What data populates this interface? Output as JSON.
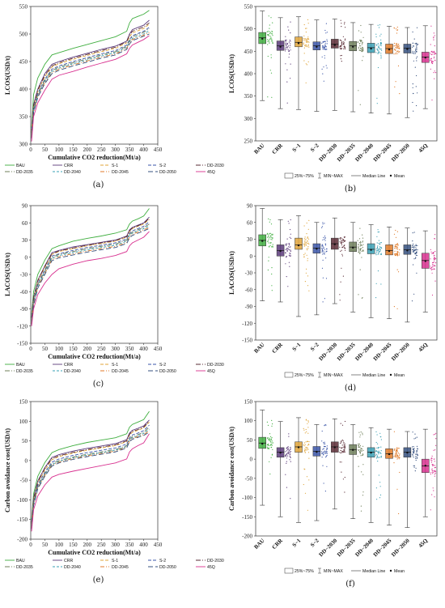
{
  "colors": {
    "BAU": "#3fae3f",
    "CRR": "#5b3a7a",
    "S-1": "#e0a53a",
    "S-2": "#3a55a8",
    "DD-2030": "#5a2b35",
    "DD-2035": "#6f7f5a",
    "DD-2040": "#3aa0b5",
    "DD-2045": "#e07a28",
    "DD-2050": "#35507f",
    "45Q": "#d8308f"
  },
  "chart_data": [
    {
      "id": "a",
      "panel_label": "(a)",
      "type": "line",
      "xlabel": "Cumulative CO2 reduction(Mt/a)",
      "ylabel": "LCOS(USD/t)",
      "xlim": [
        0,
        450
      ],
      "ylim": [
        300,
        550
      ],
      "xticks": [
        0,
        50,
        100,
        150,
        200,
        250,
        300,
        350,
        400,
        450
      ],
      "yticks": [
        300,
        350,
        400,
        450,
        500,
        550
      ],
      "x": [
        3,
        10,
        25,
        50,
        75,
        100,
        150,
        200,
        250,
        300,
        340,
        350,
        360,
        380,
        400,
        420
      ],
      "series": [
        {
          "name": "BAU",
          "values": [
            330,
            390,
            420,
            445,
            462,
            466,
            474,
            481,
            488,
            495,
            505,
            520,
            528,
            532,
            536,
            543
          ]
        },
        {
          "name": "CRR",
          "values": [
            325,
            372,
            400,
            428,
            445,
            450,
            458,
            465,
            472,
            478,
            487,
            500,
            508,
            512,
            516,
            525
          ]
        },
        {
          "name": "S-1",
          "values": [
            322,
            368,
            396,
            422,
            440,
            446,
            454,
            461,
            468,
            474,
            484,
            495,
            502,
            506,
            510,
            518
          ]
        },
        {
          "name": "S-2",
          "values": [
            318,
            364,
            392,
            418,
            436,
            442,
            450,
            457,
            464,
            470,
            480,
            490,
            497,
            501,
            505,
            512
          ]
        },
        {
          "name": "DD-2030",
          "values": [
            320,
            370,
            398,
            425,
            442,
            448,
            456,
            463,
            470,
            476,
            486,
            498,
            505,
            509,
            513,
            520
          ]
        },
        {
          "name": "DD-2035",
          "values": [
            316,
            362,
            390,
            416,
            434,
            440,
            448,
            455,
            462,
            468,
            478,
            488,
            495,
            499,
            503,
            510
          ]
        },
        {
          "name": "DD-2040",
          "values": [
            314,
            360,
            388,
            414,
            432,
            438,
            446,
            453,
            460,
            466,
            476,
            486,
            492,
            496,
            500,
            506
          ]
        },
        {
          "name": "DD-2045",
          "values": [
            312,
            358,
            386,
            412,
            430,
            436,
            444,
            451,
            458,
            464,
            474,
            484,
            490,
            494,
            498,
            503
          ]
        },
        {
          "name": "DD-2050",
          "values": [
            310,
            357,
            385,
            410,
            428,
            434,
            442,
            449,
            456,
            462,
            472,
            482,
            488,
            492,
            496,
            500
          ]
        },
        {
          "name": "45Q",
          "values": [
            305,
            350,
            375,
            398,
            418,
            425,
            432,
            440,
            447,
            454,
            464,
            474,
            480,
            485,
            490,
            497
          ]
        }
      ]
    },
    {
      "id": "b",
      "panel_label": "(b)",
      "type": "box",
      "ylabel": "LCOS(USD/t)",
      "ylim": [
        250,
        550
      ],
      "yticks": [
        250,
        300,
        350,
        400,
        450,
        500,
        550
      ],
      "categories": [
        "BAU",
        "CRR",
        "S−1",
        "S−2",
        "DD−2030",
        "DD−2035",
        "DD−2040",
        "DD−2045",
        "DD−2050",
        "45Q"
      ],
      "boxes": [
        {
          "min": 340,
          "q1": 467,
          "median": 480,
          "q3": 492,
          "max": 540,
          "mean": 478
        },
        {
          "min": 322,
          "q1": 452,
          "median": 462,
          "q3": 473,
          "max": 525,
          "mean": 460
        },
        {
          "min": 320,
          "q1": 460,
          "median": 470,
          "q3": 482,
          "max": 527,
          "mean": 468
        },
        {
          "min": 316,
          "q1": 453,
          "median": 462,
          "q3": 471,
          "max": 520,
          "mean": 460
        },
        {
          "min": 318,
          "q1": 457,
          "median": 466,
          "q3": 477,
          "max": 522,
          "mean": 464
        },
        {
          "min": 315,
          "q1": 451,
          "median": 462,
          "q3": 472,
          "max": 514,
          "mean": 460
        },
        {
          "min": 312,
          "q1": 447,
          "median": 458,
          "q3": 468,
          "max": 510,
          "mean": 456
        },
        {
          "min": 310,
          "q1": 445,
          "median": 456,
          "q3": 466,
          "max": 506,
          "mean": 454
        },
        {
          "min": 302,
          "q1": 446,
          "median": 457,
          "q3": 466,
          "max": 503,
          "mean": 455
        },
        {
          "min": 322,
          "q1": 425,
          "median": 437,
          "q3": 448,
          "max": 507,
          "mean": 436
        }
      ]
    },
    {
      "id": "c",
      "panel_label": "(c)",
      "type": "line",
      "xlabel": "Cumulative CO2 reduction(Mt/a)",
      "ylabel": "LACOS(USD/t)",
      "xlim": [
        0,
        450
      ],
      "ylim": [
        -150,
        90
      ],
      "xticks": [
        0,
        50,
        100,
        150,
        200,
        250,
        300,
        350,
        400,
        450
      ],
      "yticks": [
        -150,
        -120,
        -90,
        -60,
        -30,
        0,
        30,
        60,
        90
      ],
      "x": [
        3,
        10,
        25,
        50,
        75,
        100,
        150,
        200,
        250,
        300,
        340,
        350,
        360,
        380,
        400,
        420
      ],
      "series": [
        {
          "name": "BAU",
          "values": [
            -100,
            -60,
            -30,
            -5,
            15,
            20,
            28,
            33,
            37,
            42,
            48,
            58,
            63,
            67,
            72,
            85
          ]
        },
        {
          "name": "CRR",
          "values": [
            -105,
            -70,
            -40,
            -15,
            8,
            12,
            18,
            22,
            26,
            30,
            37,
            48,
            52,
            56,
            60,
            70
          ]
        },
        {
          "name": "S-1",
          "values": [
            -108,
            -72,
            -42,
            -18,
            5,
            10,
            15,
            20,
            24,
            28,
            35,
            45,
            50,
            54,
            58,
            66
          ]
        },
        {
          "name": "S-2",
          "values": [
            -110,
            -75,
            -46,
            -22,
            2,
            6,
            12,
            17,
            21,
            25,
            32,
            42,
            46,
            50,
            54,
            62
          ]
        },
        {
          "name": "DD-2030",
          "values": [
            -106,
            -70,
            -41,
            -16,
            6,
            11,
            16,
            21,
            25,
            29,
            36,
            46,
            51,
            55,
            59,
            68
          ]
        },
        {
          "name": "DD-2035",
          "values": [
            -112,
            -78,
            -48,
            -24,
            0,
            5,
            10,
            15,
            19,
            23,
            30,
            40,
            44,
            48,
            52,
            58
          ]
        },
        {
          "name": "DD-2040",
          "values": [
            -114,
            -80,
            -50,
            -26,
            -2,
            3,
            8,
            13,
            17,
            21,
            28,
            38,
            42,
            46,
            50,
            55
          ]
        },
        {
          "name": "DD-2045",
          "values": [
            -116,
            -82,
            -52,
            -28,
            -4,
            1,
            6,
            11,
            15,
            19,
            26,
            36,
            40,
            44,
            48,
            52
          ]
        },
        {
          "name": "DD-2050",
          "values": [
            -118,
            -84,
            -54,
            -30,
            -6,
            -1,
            4,
            9,
            13,
            17,
            24,
            34,
            38,
            42,
            46,
            50
          ]
        },
        {
          "name": "45Q",
          "values": [
            -120,
            -90,
            -65,
            -45,
            -30,
            -20,
            -12,
            -6,
            -2,
            3,
            10,
            20,
            25,
            30,
            35,
            45
          ]
        }
      ]
    },
    {
      "id": "d",
      "panel_label": "(d)",
      "type": "box",
      "ylabel": "LACOS(USD/t)",
      "ylim": [
        -150,
        90
      ],
      "yticks": [
        -150,
        -120,
        -90,
        -60,
        -30,
        0,
        30,
        60,
        90
      ],
      "categories": [
        "BAU",
        "CRR",
        "S−1",
        "S−2",
        "DD−2030",
        "DD−2035",
        "DD−2040",
        "DD−2045",
        "DD−2050",
        "45Q"
      ],
      "boxes": [
        {
          "min": -80,
          "q1": 18,
          "median": 28,
          "q3": 38,
          "max": 85,
          "mean": 27
        },
        {
          "min": -82,
          "q1": 0,
          "median": 10,
          "q3": 20,
          "max": 65,
          "mean": 9
        },
        {
          "min": -108,
          "q1": 12,
          "median": 20,
          "q3": 32,
          "max": 72,
          "mean": 19
        },
        {
          "min": -105,
          "q1": 5,
          "median": 14,
          "q3": 22,
          "max": 60,
          "mean": 13
        },
        {
          "min": -85,
          "q1": 12,
          "median": 22,
          "q3": 32,
          "max": 68,
          "mean": 21
        },
        {
          "min": -100,
          "q1": 8,
          "median": 16,
          "q3": 25,
          "max": 60,
          "mean": 15
        },
        {
          "min": -110,
          "q1": 4,
          "median": 12,
          "q3": 22,
          "max": 56,
          "mean": 11
        },
        {
          "min": -112,
          "q1": 2,
          "median": 10,
          "q3": 20,
          "max": 52,
          "mean": 9
        },
        {
          "min": -118,
          "q1": 3,
          "median": 11,
          "q3": 20,
          "max": 50,
          "mean": 10
        },
        {
          "min": -100,
          "q1": -22,
          "median": -8,
          "q3": 5,
          "max": 45,
          "mean": -9
        }
      ]
    },
    {
      "id": "e",
      "panel_label": "(e)",
      "type": "line",
      "xlabel": "Cumulative CO2 reduction(Mt/a)",
      "ylabel": "Carbon avoidance cost(USD/t)",
      "xlim": [
        0,
        450
      ],
      "ylim": [
        -200,
        150
      ],
      "xticks": [
        0,
        50,
        100,
        150,
        200,
        250,
        300,
        350,
        400,
        450
      ],
      "yticks": [
        -200,
        -150,
        -100,
        -50,
        0,
        50,
        100,
        150
      ],
      "x": [
        3,
        10,
        25,
        50,
        75,
        100,
        150,
        200,
        250,
        300,
        340,
        350,
        360,
        380,
        400,
        420
      ],
      "series": [
        {
          "name": "BAU",
          "values": [
            -150,
            -85,
            -40,
            -5,
            20,
            28,
            38,
            46,
            52,
            58,
            68,
            85,
            92,
            98,
            104,
            125
          ]
        },
        {
          "name": "CRR",
          "values": [
            -158,
            -95,
            -52,
            -18,
            8,
            15,
            24,
            31,
            37,
            43,
            53,
            70,
            77,
            82,
            88,
            103
          ]
        },
        {
          "name": "S-1",
          "values": [
            -162,
            -100,
            -57,
            -24,
            2,
            10,
            19,
            26,
            32,
            38,
            48,
            65,
            72,
            77,
            83,
            98
          ]
        },
        {
          "name": "S-2",
          "values": [
            -165,
            -105,
            -62,
            -30,
            -4,
            4,
            13,
            20,
            26,
            32,
            42,
            58,
            65,
            70,
            76,
            90
          ]
        },
        {
          "name": "DD-2030",
          "values": [
            -160,
            -98,
            -55,
            -20,
            5,
            12,
            21,
            28,
            34,
            40,
            50,
            67,
            74,
            79,
            85,
            100
          ]
        },
        {
          "name": "DD-2035",
          "values": [
            -168,
            -108,
            -66,
            -34,
            -8,
            0,
            9,
            16,
            22,
            28,
            38,
            54,
            61,
            66,
            72,
            85
          ]
        },
        {
          "name": "DD-2040",
          "values": [
            -170,
            -110,
            -68,
            -36,
            -10,
            -2,
            7,
            14,
            20,
            26,
            36,
            52,
            58,
            63,
            69,
            80
          ]
        },
        {
          "name": "DD-2045",
          "values": [
            -172,
            -112,
            -70,
            -38,
            -12,
            -4,
            5,
            12,
            18,
            24,
            34,
            50,
            56,
            61,
            66,
            76
          ]
        },
        {
          "name": "DD-2050",
          "values": [
            -175,
            -115,
            -72,
            -40,
            -14,
            -6,
            3,
            10,
            16,
            22,
            32,
            48,
            54,
            59,
            64,
            72
          ]
        },
        {
          "name": "45Q",
          "values": [
            -180,
            -125,
            -90,
            -62,
            -42,
            -35,
            -27,
            -20,
            -13,
            -6,
            4,
            22,
            30,
            38,
            45,
            68
          ]
        }
      ]
    },
    {
      "id": "f",
      "panel_label": "(f)",
      "type": "box",
      "ylabel": "Carbon avoidance cost(USD/t)",
      "ylim": [
        -200,
        150
      ],
      "yticks": [
        -200,
        -150,
        -100,
        -50,
        0,
        50,
        100,
        150
      ],
      "categories": [
        "BAU",
        "CRR",
        "S−1",
        "S−2",
        "DD−2030",
        "DD−2035",
        "DD−2040",
        "DD−2045",
        "DD−2050",
        "45Q"
      ],
      "boxes": [
        {
          "min": -120,
          "q1": 28,
          "median": 42,
          "q3": 57,
          "max": 128,
          "mean": 40
        },
        {
          "min": -150,
          "q1": 5,
          "median": 18,
          "q3": 30,
          "max": 98,
          "mean": 17
        },
        {
          "min": -165,
          "q1": 18,
          "median": 32,
          "q3": 45,
          "max": 108,
          "mean": 31
        },
        {
          "min": -160,
          "q1": 8,
          "median": 20,
          "q3": 33,
          "max": 90,
          "mean": 19
        },
        {
          "min": -130,
          "q1": 18,
          "median": 32,
          "q3": 45,
          "max": 105,
          "mean": 31
        },
        {
          "min": -155,
          "q1": 12,
          "median": 25,
          "q3": 38,
          "max": 90,
          "mean": 24
        },
        {
          "min": -165,
          "q1": 5,
          "median": 18,
          "q3": 30,
          "max": 82,
          "mean": 17
        },
        {
          "min": -172,
          "q1": 2,
          "median": 14,
          "q3": 27,
          "max": 78,
          "mean": 13
        },
        {
          "min": -178,
          "q1": 5,
          "median": 18,
          "q3": 30,
          "max": 72,
          "mean": 17
        },
        {
          "min": -150,
          "q1": -35,
          "median": -18,
          "q3": 0,
          "max": 78,
          "mean": -17
        }
      ]
    }
  ],
  "line_legend": [
    "BAU",
    "CRR",
    "S-1",
    "S-2",
    "DD-2030",
    "DD-2035",
    "DD-2040",
    "DD-2045",
    "DD-2050",
    "45Q"
  ],
  "box_legend": {
    "range_label": "25%~75%",
    "whisker_label": "MIN~MAX",
    "median_label": "Median Line",
    "mean_label": "Mean"
  }
}
